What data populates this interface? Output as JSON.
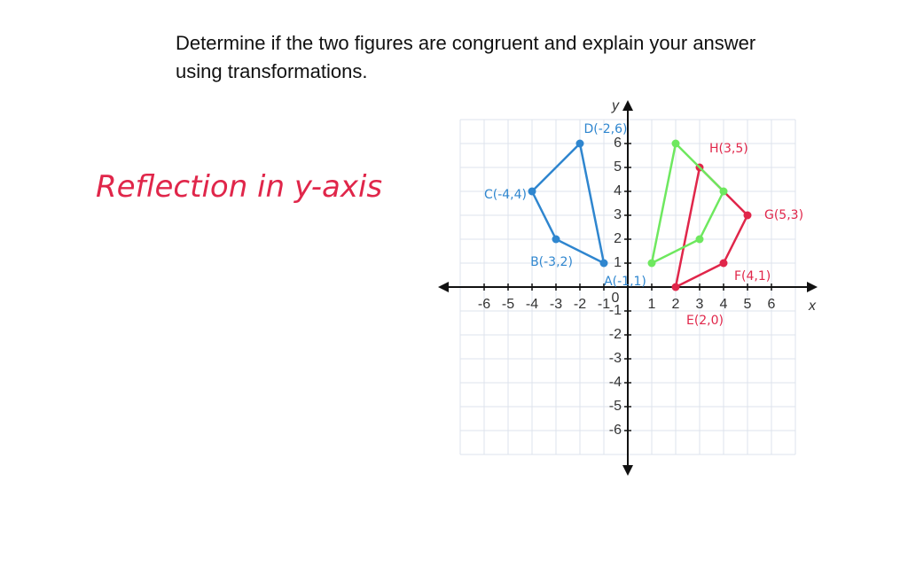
{
  "question": [
    "Determine if the two figures are congruent and explain your answer",
    "using transformations."
  ],
  "note": "Reflection in y-axis",
  "graph": {
    "x_label": "x",
    "y_label": "y",
    "origin": 0,
    "xlim": [
      -7,
      7
    ],
    "ylim": [
      -7,
      7
    ],
    "xticks": [
      -6,
      -5,
      -4,
      -3,
      -2,
      -1,
      1,
      2,
      3,
      4,
      5,
      6
    ],
    "yticks": [
      -6,
      -5,
      -4,
      -3,
      -2,
      -1,
      1,
      2,
      3,
      4,
      5,
      6
    ],
    "grid": true,
    "figures": [
      {
        "color": "#2f86cf",
        "points": [
          {
            "x": -1,
            "y": 1,
            "label": "A(-1,1)"
          },
          {
            "x": -3,
            "y": 2,
            "label": "B(-3,2)"
          },
          {
            "x": -4,
            "y": 4,
            "label": "C(-4,4)"
          },
          {
            "x": -2,
            "y": 6,
            "label": "D(-2,6)"
          }
        ]
      },
      {
        "color": "#e0264a",
        "points": [
          {
            "x": 2,
            "y": 0,
            "label": "E(2,0)"
          },
          {
            "x": 4,
            "y": 1,
            "label": "F(4,1)"
          },
          {
            "x": 5,
            "y": 3,
            "label": "G(5,3)"
          },
          {
            "x": 3,
            "y": 5,
            "label": "H(3,5)"
          }
        ]
      },
      {
        "color": "#6ee85f",
        "points": [
          {
            "x": 1,
            "y": 1
          },
          {
            "x": 3,
            "y": 2
          },
          {
            "x": 4,
            "y": 4
          },
          {
            "x": 2,
            "y": 6
          }
        ]
      }
    ]
  }
}
